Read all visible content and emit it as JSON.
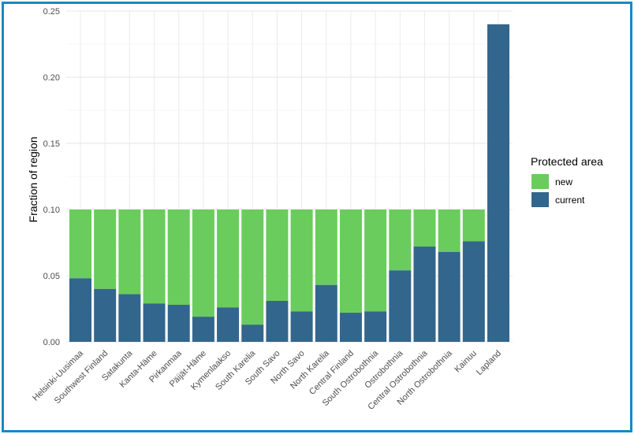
{
  "chart_data": {
    "type": "bar",
    "stacked": true,
    "title": "",
    "xlabel": "",
    "ylabel": "Fraction of region",
    "ylim": [
      0,
      0.25
    ],
    "yticks": [
      "0.00",
      "0.05",
      "0.10",
      "0.15",
      "0.20",
      "0.25"
    ],
    "grid": true,
    "legend": {
      "title": "Protected area",
      "position": "right"
    },
    "categories": [
      "Helsinki-Uusimaa",
      "Southwest Finland",
      "Satakunta",
      "Kanta-Häme",
      "Pirkanmaa",
      "Päijät-Häme",
      "Kymenlaakso",
      "South Karelia",
      "South Savo",
      "North Savo",
      "North Karelia",
      "Central Finland",
      "South Ostrobothnia",
      "Ostrobothnia",
      "Central Ostrobothnia",
      "North Ostrobothnia",
      "Kainuu",
      "Lapland"
    ],
    "series": [
      {
        "name": "current",
        "color": "#33668c",
        "values": [
          0.048,
          0.04,
          0.036,
          0.029,
          0.028,
          0.019,
          0.026,
          0.013,
          0.031,
          0.023,
          0.043,
          0.022,
          0.023,
          0.054,
          0.072,
          0.068,
          0.076,
          0.24
        ]
      },
      {
        "name": "new",
        "color": "#6acc5c",
        "values": [
          0.052,
          0.06,
          0.064,
          0.071,
          0.072,
          0.081,
          0.074,
          0.087,
          0.069,
          0.077,
          0.057,
          0.078,
          0.077,
          0.046,
          0.028,
          0.032,
          0.024,
          0.0
        ]
      }
    ]
  }
}
